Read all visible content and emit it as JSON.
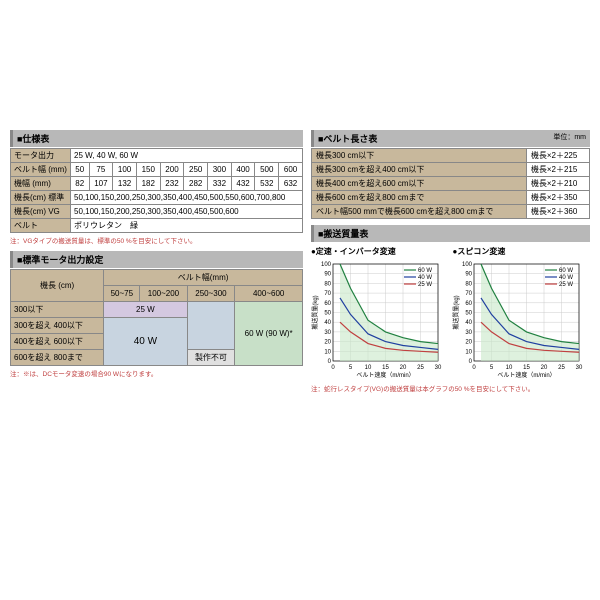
{
  "colors": {
    "hdr": "#c8b89c",
    "fill25": "#d4c8e0",
    "fill40": "#c8d4e0",
    "fill60": "#c8e0c8"
  },
  "spec": {
    "title": "■仕様表",
    "rows": [
      {
        "label": "モータ出力",
        "cells": [
          "25 W, 40 W, 60 W"
        ],
        "span": 10
      },
      {
        "label": "ベルト幅 (mm)",
        "cells": [
          "50",
          "75",
          "100",
          "150",
          "200",
          "250",
          "300",
          "400",
          "500",
          "600"
        ]
      },
      {
        "label": "機幅 (mm)",
        "cells": [
          "82",
          "107",
          "132",
          "182",
          "232",
          "282",
          "332",
          "432",
          "532",
          "632"
        ]
      },
      {
        "label": "機長(cm) 標準",
        "cells": [
          "50,100,150,200,250,300,350,400,450,500,550,600,700,800"
        ],
        "span": 10
      },
      {
        "label": "機長(cm) VG",
        "cells": [
          "50,100,150,200,250,300,350,400,450,500,600"
        ],
        "span": 10
      },
      {
        "label": "ベルト",
        "cells": [
          "ポリウレタン　緑"
        ],
        "span": 10
      }
    ],
    "note": "注：VGタイプの搬送質量は、標準の50 %を目安にして下さい。"
  },
  "belt": {
    "title": "■ベルト長さ表",
    "unit": "単位：mm",
    "rows": [
      [
        "機長300 cm以下",
        "機長×2＋225"
      ],
      [
        "機長300 cmを超え400 cm以下",
        "機長×2＋215"
      ],
      [
        "機長400 cmを超え600 cm以下",
        "機長×2＋210"
      ],
      [
        "機長600 cmを超え800 cmまで",
        "機長×2＋350"
      ],
      [
        "ベルト幅500 mmで機長600 cmを超え800 cmまで",
        "機長×2＋360"
      ]
    ]
  },
  "motor": {
    "title": "■標準モータ出力設定",
    "col_header": "ベルト幅(mm)",
    "row_header": "機長 (cm)",
    "cols": [
      "50~75",
      "100~200",
      "250~300",
      "400~600"
    ],
    "rows": [
      "300以下",
      "300を超え 400以下",
      "400を超え 600以下",
      "600を超え 800まで"
    ],
    "label25": "25 W",
    "label40": "40 W",
    "label60": "60 W (90 W)*",
    "labelX": "製作不可",
    "note": "注：※は、DCモータ変速の場合90 Wになります。"
  },
  "transport": {
    "title": "■搬送質量表",
    "chart1_title": "●定速・インバータ変速",
    "chart2_title": "●スピコン変速",
    "xlabel": "ベルト速度（m/min）",
    "ylabel": "搬送質量(kg)",
    "xticks": [
      0,
      5,
      10,
      15,
      20,
      25,
      30
    ],
    "yticks": [
      0,
      10,
      20,
      30,
      40,
      50,
      60,
      70,
      80,
      90,
      100
    ],
    "legend": [
      {
        "label": "60 W",
        "color": "#208040"
      },
      {
        "label": "40 W",
        "color": "#2040a0"
      },
      {
        "label": "25 W",
        "color": "#c04040"
      }
    ],
    "series": {
      "60W": [
        [
          2,
          100
        ],
        [
          5,
          75
        ],
        [
          10,
          42
        ],
        [
          15,
          30
        ],
        [
          20,
          24
        ],
        [
          25,
          20
        ],
        [
          30,
          18
        ]
      ],
      "40W": [
        [
          2,
          65
        ],
        [
          5,
          48
        ],
        [
          10,
          28
        ],
        [
          15,
          20
        ],
        [
          20,
          16
        ],
        [
          25,
          14
        ],
        [
          30,
          12
        ]
      ],
      "25W": [
        [
          2,
          40
        ],
        [
          5,
          30
        ],
        [
          10,
          18
        ],
        [
          15,
          13
        ],
        [
          20,
          11
        ],
        [
          25,
          10
        ],
        [
          30,
          9
        ]
      ]
    },
    "note": "注：蛇行レスタイプ(VG)の搬送質量は本グラフの50 %を目安にして下さい。"
  }
}
